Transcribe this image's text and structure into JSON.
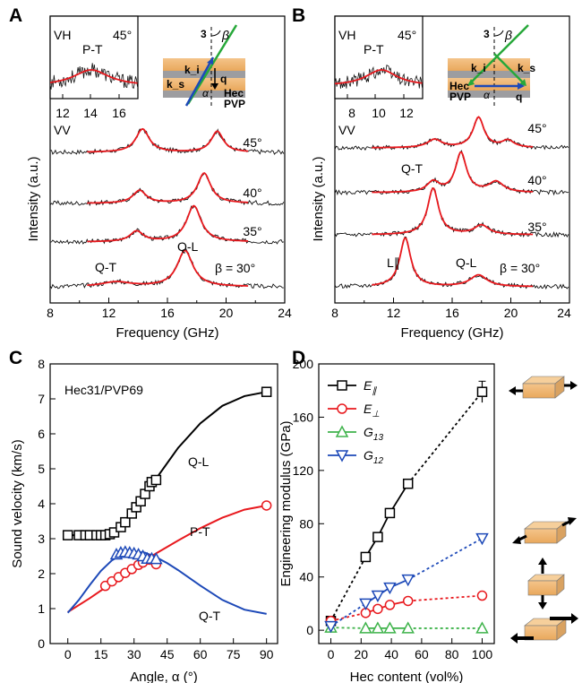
{
  "panels": {
    "A": "A",
    "B": "B",
    "C": "C",
    "D": "D"
  },
  "chart_data": [
    {
      "panel": "A",
      "type": "line",
      "xlabel": "Frequency (GHz)",
      "ylabel": "Intensity (a.u.)",
      "xlim": [
        8,
        24
      ],
      "xticks": [
        "8",
        "12",
        "16",
        "20",
        "24"
      ],
      "inset": {
        "mode": "VH",
        "angle": "45°",
        "peak_label": "P-T",
        "xticks": [
          "12",
          "14",
          "16"
        ],
        "xlim": [
          11,
          17.4
        ],
        "peaks": [
          {
            "center": 14.0,
            "height": 0.45,
            "width": 1.6
          }
        ]
      },
      "mode_label": "VV",
      "beta_label": "β = 30°",
      "spectra": [
        {
          "angle": "45°",
          "peaks": [
            {
              "center": 14.3,
              "height": 1.0,
              "width": 0.55
            },
            {
              "center": 19.4,
              "height": 0.9,
              "width": 0.5
            }
          ]
        },
        {
          "angle": "40°",
          "peaks": [
            {
              "center": 14.1,
              "height": 0.55,
              "width": 0.55
            },
            {
              "center": 18.5,
              "height": 1.3,
              "width": 0.55
            }
          ]
        },
        {
          "angle": "35°",
          "peaks": [
            {
              "center": 13.9,
              "height": 0.45,
              "width": 0.55
            },
            {
              "center": 17.8,
              "height": 1.55,
              "width": 0.6
            }
          ]
        },
        {
          "angle": "",
          "peaks": [
            {
              "center": 12.5,
              "height": 0.2,
              "width": 1.2
            },
            {
              "center": 17.2,
              "height": 1.55,
              "width": 0.65
            }
          ]
        }
      ],
      "peak_labels": [
        "Q-T",
        "Q-L"
      ],
      "schematic": {
        "labels": [
          "3",
          "β",
          "k_i",
          "k_s",
          "α",
          "q",
          "Hec",
          "PVP"
        ]
      }
    },
    {
      "panel": "B",
      "type": "line",
      "xlabel": "Frequency (GHz)",
      "ylabel": "Intensity (a.u.)",
      "xlim": [
        8,
        24
      ],
      "xticks": [
        "8",
        "12",
        "16",
        "20",
        "24"
      ],
      "inset": {
        "mode": "VH",
        "angle": "45°",
        "peak_label": "P-T",
        "xticks": [
          "8",
          "10",
          "12"
        ],
        "xlim": [
          6.8,
          13.2
        ],
        "peaks": [
          {
            "center": 10.2,
            "height": 0.45,
            "width": 1.4
          }
        ]
      },
      "mode_label": "VV",
      "beta_label": "β = 30°",
      "spectra": [
        {
          "angle": "45°",
          "peaks": [
            {
              "center": 14.8,
              "height": 0.35,
              "width": 0.6
            },
            {
              "center": 17.8,
              "height": 1.3,
              "width": 0.45
            },
            {
              "center": 19.8,
              "height": 0.3,
              "width": 0.5
            }
          ]
        },
        {
          "angle": "40°",
          "peaks": [
            {
              "center": 14.7,
              "height": 0.45,
              "width": 0.5
            },
            {
              "center": 16.6,
              "height": 1.7,
              "width": 0.45
            },
            {
              "center": 19.0,
              "height": 0.45,
              "width": 0.6
            }
          ]
        },
        {
          "angle": "35°",
          "peaks": [
            {
              "center": 14.7,
              "height": 2.0,
              "width": 0.45
            },
            {
              "center": 18.0,
              "height": 0.4,
              "width": 0.6
            }
          ]
        },
        {
          "angle": "",
          "peaks": [
            {
              "center": 12.8,
              "height": 2.1,
              "width": 0.45
            },
            {
              "center": 17.8,
              "height": 0.5,
              "width": 0.7
            }
          ]
        }
      ],
      "peak_labels": [
        "Q-T",
        "L∥",
        "Q-L"
      ],
      "schematic": {
        "labels": [
          "3",
          "β",
          "k_i",
          "k_s",
          "α",
          "q",
          "Hec",
          "PVP"
        ]
      }
    },
    {
      "panel": "C",
      "type": "scatter",
      "annotation": "Hec31/PVP69",
      "xlabel": "Angle, α (°)",
      "ylabel": "Sound velocity (km/s)",
      "xlim": [
        -8,
        95
      ],
      "ylim": [
        0,
        8
      ],
      "xticks": [
        "0",
        "15",
        "30",
        "45",
        "60",
        "75",
        "90"
      ],
      "yticks": [
        "0",
        "1",
        "2",
        "3",
        "4",
        "5",
        "6",
        "7",
        "8"
      ],
      "curve_labels": [
        "Q-L",
        "P-T",
        "Q-T"
      ],
      "colors": {
        "QL": "#000000",
        "PT": "#e8191e",
        "QT": "#1d49b8"
      },
      "series": [
        {
          "name": "Q-L",
          "marker": "square",
          "x": [
            0,
            5,
            8,
            10,
            13,
            15,
            17,
            19,
            21,
            24,
            26,
            29,
            31,
            33,
            35,
            37,
            38,
            40,
            90
          ],
          "y": [
            3.1,
            3.1,
            3.1,
            3.1,
            3.1,
            3.1,
            3.1,
            3.13,
            3.18,
            3.33,
            3.47,
            3.72,
            3.9,
            4.07,
            4.28,
            4.5,
            4.62,
            4.68,
            7.2
          ]
        },
        {
          "name": "P-T",
          "marker": "circle",
          "x": [
            17,
            20,
            23,
            26,
            29,
            32,
            34,
            37,
            40,
            90
          ],
          "y": [
            1.65,
            1.78,
            1.9,
            2.02,
            2.13,
            2.25,
            2.32,
            2.4,
            2.27,
            3.95
          ]
        },
        {
          "name": "Q-T",
          "marker": "triangle",
          "x": [
            22,
            24,
            26,
            28,
            30,
            32,
            34,
            36,
            38,
            40
          ],
          "y": [
            2.55,
            2.6,
            2.62,
            2.6,
            2.58,
            2.55,
            2.5,
            2.43,
            2.43,
            2.42
          ]
        }
      ],
      "curves": {
        "QL": {
          "x": [
            0,
            10,
            20,
            30,
            40,
            50,
            60,
            70,
            80,
            90
          ],
          "y": [
            3.1,
            3.1,
            3.17,
            3.8,
            4.72,
            5.6,
            6.3,
            6.8,
            7.08,
            7.2
          ]
        },
        "PT": {
          "x": [
            0,
            10,
            20,
            30,
            40,
            50,
            60,
            70,
            80,
            90
          ],
          "y": [
            0.9,
            1.3,
            1.73,
            2.18,
            2.58,
            2.95,
            3.3,
            3.6,
            3.83,
            3.95
          ]
        },
        "QT": {
          "x": [
            0,
            5,
            10,
            15,
            20,
            25,
            30,
            35,
            40,
            45,
            50,
            60,
            70,
            80,
            90
          ],
          "y": [
            0.88,
            1.25,
            1.68,
            2.08,
            2.38,
            2.57,
            2.63,
            2.6,
            2.47,
            2.3,
            2.1,
            1.66,
            1.25,
            0.97,
            0.85
          ]
        }
      }
    },
    {
      "panel": "D",
      "type": "line",
      "xlabel": "Hec content (vol%)",
      "ylabel": "Engineering modulus (GPa)",
      "xlim": [
        -8,
        108
      ],
      "ylim": [
        -10,
        200
      ],
      "xticks": [
        "0",
        "20",
        "40",
        "60",
        "80",
        "100"
      ],
      "yticks": [
        "0",
        "40",
        "80",
        "120",
        "160",
        "200"
      ],
      "legend_position": "top-left",
      "series": [
        {
          "name": "E∥",
          "base": "E",
          "sub": "∥",
          "color": "#000000",
          "marker": "square",
          "x": [
            0,
            23,
            31,
            39,
            51,
            100
          ],
          "y": [
            7,
            55,
            70,
            88,
            110,
            179
          ],
          "err": 8
        },
        {
          "name": "E⊥",
          "base": "E",
          "sub": "⊥",
          "color": "#e8191e",
          "marker": "circle",
          "x": [
            0,
            23,
            31,
            39,
            51,
            100
          ],
          "y": [
            7,
            13,
            16,
            19,
            22,
            26
          ]
        },
        {
          "name": "G13",
          "base": "G",
          "sub": "13",
          "color": "#3fb34b",
          "marker": "triangle",
          "x": [
            0,
            23,
            31,
            39,
            51,
            100
          ],
          "y": [
            2,
            1.5,
            1.5,
            1.5,
            1.5,
            1.5
          ]
        },
        {
          "name": "G12",
          "base": "G",
          "sub": "12",
          "color": "#1d49b8",
          "marker": "triangle-down",
          "x": [
            0,
            23,
            31,
            39,
            51,
            100
          ],
          "y": [
            3,
            20,
            26,
            32,
            38,
            69
          ]
        }
      ]
    }
  ]
}
